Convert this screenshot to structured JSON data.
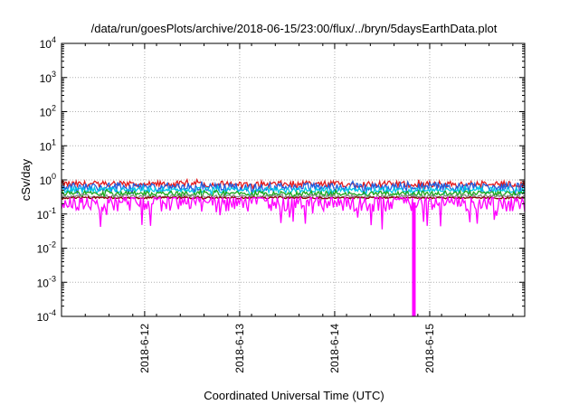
{
  "chart_data": {
    "type": "line",
    "title": "/data/run/goesPlots/archive/2018-06-15/23:00/flux/../bryn/5daysEarthData.plot",
    "xlabel": "Coordinated Universal Time (UTC)",
    "ylabel": "cSv/day",
    "x_range": [
      "2018-06-11T03:00",
      "2018-06-16T00:00"
    ],
    "x_ticks": [
      "2018-6-12",
      "2018-6-13",
      "2018-6-14",
      "2018-6-15"
    ],
    "y_scale": "log",
    "ylim": [
      0.0001,
      10000
    ],
    "y_tick_exponents": [
      -4,
      -3,
      -2,
      -1,
      0,
      1,
      2,
      3,
      4
    ],
    "y_tick_base": "10",
    "grid": true,
    "legend": "none",
    "colors": {
      "red": "#e41a1c",
      "blue": "#1f5fe0",
      "cyan": "#00c8e8",
      "green": "#1aa81a",
      "gray": "#8a8a8a",
      "magenta": "#ff00ff",
      "darkred": "#8b0000"
    },
    "series": [
      {
        "color": "red",
        "typical": 0.75,
        "min": 0.5,
        "max": 1.1
      },
      {
        "color": "blue",
        "typical": 0.62,
        "min": 0.35,
        "max": 0.95
      },
      {
        "color": "cyan",
        "typical": 0.5,
        "min": 0.35,
        "max": 0.7
      },
      {
        "color": "green",
        "typical": 0.4,
        "min": 0.3,
        "max": 0.55
      },
      {
        "color": "gray",
        "typical": 0.33,
        "min": 0.26,
        "max": 0.4
      },
      {
        "color": "darkred",
        "typical": 0.3,
        "min": 0.27,
        "max": 0.34
      },
      {
        "color": "magenta",
        "typical": 0.22,
        "min": 0.03,
        "max": 0.3,
        "dropout": {
          "date": "2018-06-14T20:00",
          "value": 0.0001
        }
      }
    ]
  }
}
